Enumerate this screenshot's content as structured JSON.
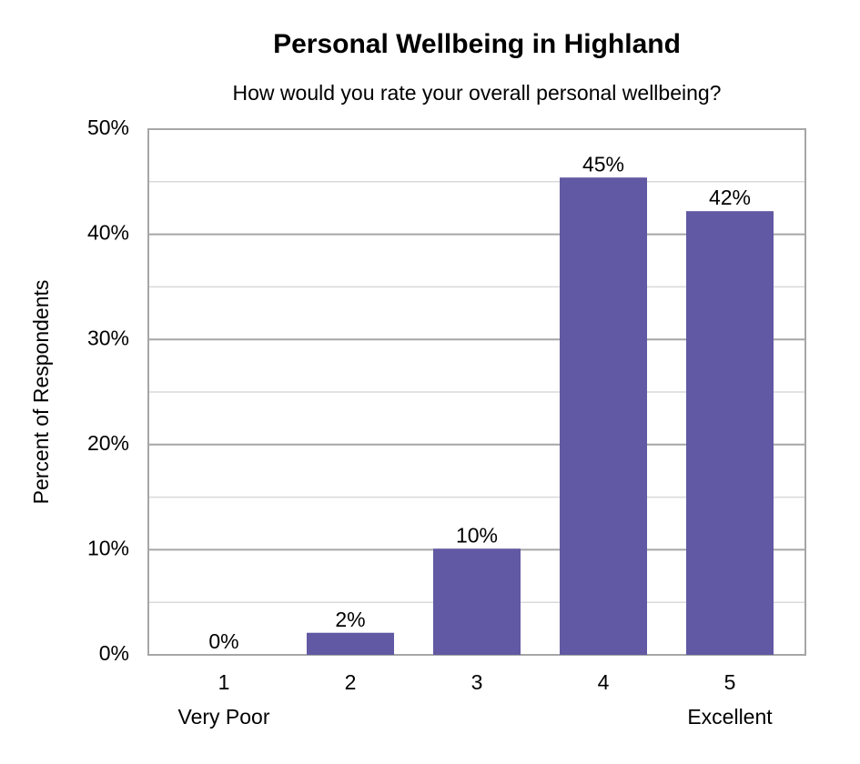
{
  "chart_data": {
    "type": "bar",
    "title": "Personal Wellbeing in Highland",
    "subtitle": "How would you rate your overall personal wellbeing?",
    "y_label": "Percent of Respondents",
    "categories": [
      "1",
      "2",
      "3",
      "4",
      "5"
    ],
    "category_sublabels": [
      "Very Poor",
      null,
      null,
      null,
      "Excellent"
    ],
    "values": [
      0,
      2.1,
      10.1,
      45.4,
      42.2
    ],
    "value_labels": [
      "0%",
      "2%",
      "10%",
      "45%",
      "42%"
    ],
    "color": "#6159a3",
    "ylim": [
      0,
      50
    ],
    "yticks": [
      {
        "value": 0,
        "label": "0%"
      },
      {
        "value": 10,
        "label": "10%"
      },
      {
        "value": 20,
        "label": "20%"
      },
      {
        "value": 30,
        "label": "30%"
      },
      {
        "value": 40,
        "label": "40%"
      },
      {
        "value": 50,
        "label": "50%"
      }
    ],
    "minor_yticks": [
      5,
      15,
      25,
      35,
      45
    ],
    "grid": true
  }
}
